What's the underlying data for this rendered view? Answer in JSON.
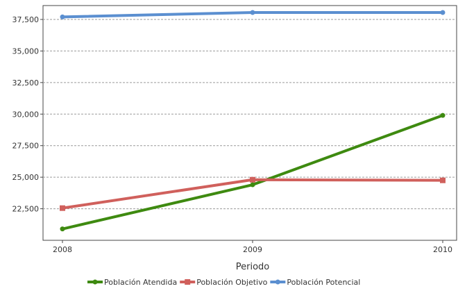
{
  "chart_data": {
    "type": "line",
    "title": "",
    "xlabel": "Periodo",
    "ylabel": "",
    "categories": [
      "2008",
      "2009",
      "2010"
    ],
    "y_ticks": [
      22500,
      25000,
      27500,
      30000,
      32500,
      35000,
      37500
    ],
    "y_tick_labels": [
      "22,500",
      "25,000",
      "27,500",
      "30,000",
      "32,500",
      "35,000",
      "37,500"
    ],
    "ylim": [
      20000,
      38600
    ],
    "grid": "horizontal dashed",
    "legend_position": "bottom",
    "series": [
      {
        "name": "Población Atendida",
        "color": "#3e8a10",
        "values": [
          20900,
          24400,
          29900
        ]
      },
      {
        "name": "Población Objetivo",
        "color": "#d0605c",
        "values": [
          22550,
          24800,
          24750
        ]
      },
      {
        "name": "Población Potencial",
        "color": "#5b8fd0",
        "values": [
          37700,
          38050,
          38050
        ]
      }
    ]
  }
}
